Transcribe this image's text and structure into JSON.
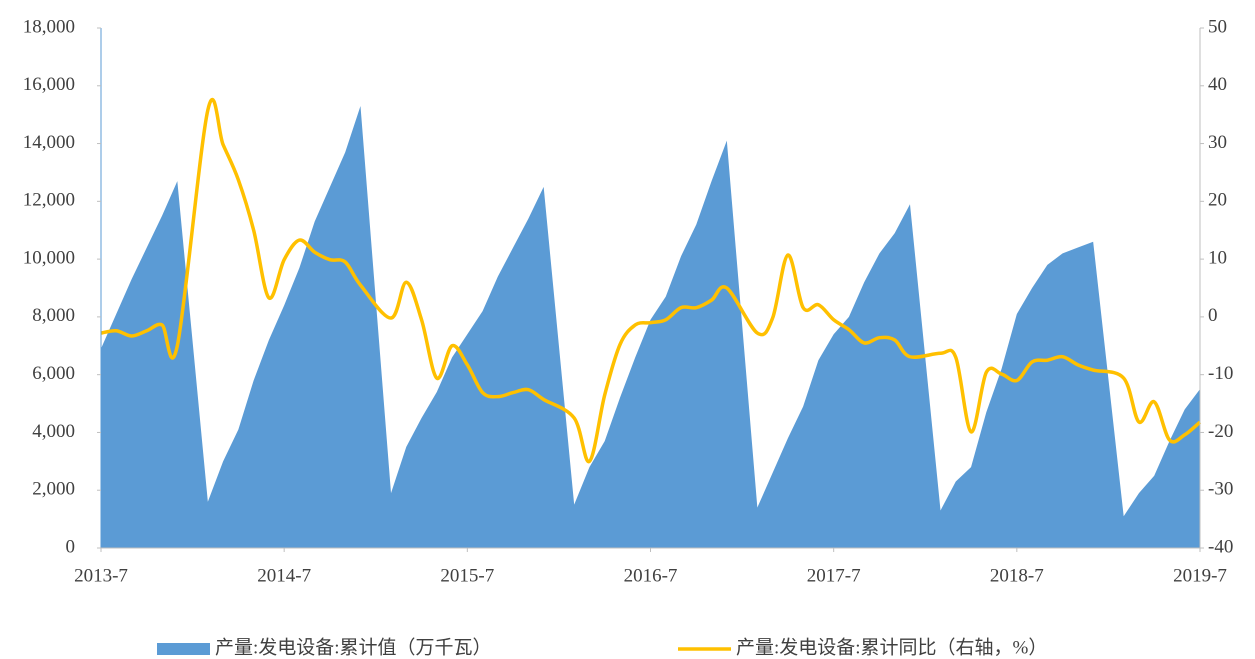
{
  "chart_data": {
    "type": "area+line",
    "x": [
      "2013-7",
      "2013-8",
      "2013-9",
      "2013-10",
      "2013-11",
      "2013-12",
      "2014-2",
      "2014-3",
      "2014-4",
      "2014-5",
      "2014-6",
      "2014-7",
      "2014-8",
      "2014-9",
      "2014-10",
      "2014-11",
      "2014-12",
      "2015-2",
      "2015-3",
      "2015-4",
      "2015-5",
      "2015-6",
      "2015-7",
      "2015-8",
      "2015-9",
      "2015-10",
      "2015-11",
      "2015-12",
      "2016-2",
      "2016-3",
      "2016-4",
      "2016-5",
      "2016-6",
      "2016-7",
      "2016-8",
      "2016-9",
      "2016-10",
      "2016-11",
      "2016-12",
      "2017-2",
      "2017-3",
      "2017-4",
      "2017-5",
      "2017-6",
      "2017-7",
      "2017-8",
      "2017-9",
      "2017-10",
      "2017-11",
      "2017-12",
      "2018-2",
      "2018-3",
      "2018-4",
      "2018-5",
      "2018-6",
      "2018-7",
      "2018-8",
      "2018-9",
      "2018-10",
      "2018-11",
      "2018-12",
      "2019-2",
      "2019-3",
      "2019-4",
      "2019-5",
      "2019-6",
      "2019-7"
    ],
    "series": [
      {
        "name": "产量:发电设备:累计值（万千瓦）",
        "type": "area",
        "color": "#5b9bd5",
        "values": [
          6900,
          8100,
          9300,
          10400,
          11500,
          12700,
          1600,
          3000,
          4100,
          5800,
          7200,
          8400,
          9700,
          11300,
          12500,
          13700,
          15300,
          1900,
          3500,
          4500,
          5400,
          6600,
          7400,
          8200,
          9400,
          10400,
          11400,
          12500,
          1500,
          2800,
          3700,
          5200,
          6600,
          7900,
          8700,
          10100,
          11200,
          12700,
          14100,
          1400,
          2600,
          3800,
          4900,
          6500,
          7400,
          8000,
          9200,
          10200,
          10900,
          11900,
          1300,
          2300,
          2800,
          4700,
          6200,
          8100,
          9000,
          9800,
          10200,
          10400,
          10600,
          1100,
          1900,
          2500,
          3700,
          4800,
          5500
        ]
      },
      {
        "name": "产量:发电设备:累计同比（右轴，%）",
        "type": "line",
        "axis": "y2",
        "color": "#ffc000",
        "values": [
          -2.8,
          -2.4,
          -3.3,
          -2.4,
          -1.4,
          -5,
          35.8,
          29.8,
          23.7,
          15,
          3.3,
          9.9,
          13.3,
          11.2,
          9.9,
          9.5,
          5.5,
          -0.2,
          6,
          -0.5,
          -10.6,
          -5,
          -8.3,
          -13.1,
          -13.8,
          -13.1,
          -12.6,
          -14.3,
          -17.5,
          -25,
          -13.5,
          -4.8,
          -1.4,
          -1,
          -0.5,
          1.6,
          1.6,
          2.9,
          5,
          -2.8,
          -0.2,
          10.7,
          1.6,
          2.1,
          -0.5,
          -2.2,
          -4.5,
          -3.6,
          -4,
          -6.9,
          -6.3,
          -7,
          -19.9,
          -9.6,
          -9.9,
          -11,
          -7.8,
          -7.5,
          -6.9,
          -8.3,
          -9.2,
          -10.6,
          -18.2,
          -14.7,
          -21.3,
          -20.4,
          -18.2
        ]
      }
    ],
    "xlim": [
      "2013-7",
      "2019-7"
    ],
    "xticks": [
      "2013-7",
      "2014-7",
      "2015-7",
      "2016-7",
      "2017-7",
      "2018-7",
      "2019-7"
    ],
    "ylim": [
      0,
      18000
    ],
    "yticks": [
      0,
      {
        "value": 2000,
        "label": "2,000"
      },
      {
        "value": 4000,
        "label": "4,000"
      },
      {
        "value": 6000,
        "label": "6,000"
      },
      {
        "value": 8000,
        "label": "8,000"
      },
      {
        "value": 10000,
        "label": "10,000"
      },
      {
        "value": 12000,
        "label": "12,000"
      },
      {
        "value": 14000,
        "label": "14,000"
      },
      {
        "value": 16000,
        "label": "16,000"
      },
      {
        "value": 18000,
        "label": "18,000"
      }
    ],
    "y2lim": [
      -40,
      50
    ],
    "y2ticks": [
      -40,
      -30,
      -20,
      -10,
      0,
      10,
      20,
      30,
      40,
      50
    ],
    "legend": "bottom"
  }
}
